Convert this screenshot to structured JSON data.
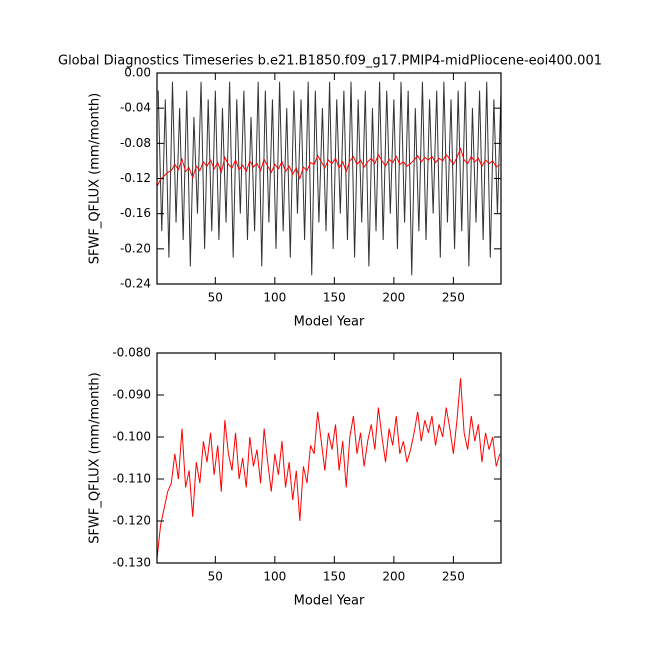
{
  "chart_data": [
    {
      "type": "line",
      "title": "Global Diagnostics Timeseries b.e21.B1850.f09_g17.PMIP4-midPliocene-eoi400.001",
      "xlabel": "Model Year",
      "ylabel": "SFWF_QFLUX (mm/month)",
      "xlim": [
        1,
        290
      ],
      "xticks": [
        50,
        100,
        150,
        200,
        250
      ],
      "ylim": [
        -0.24,
        0
      ],
      "yticks": [
        -0.24,
        {
          "value": -0.2,
          "label": "-0.20"
        },
        -0.16,
        -0.12,
        -0.08,
        -0.04,
        {
          "value": 0,
          "label": "0.00"
        }
      ],
      "series": [
        {
          "color": "#333333",
          "x": [
            2,
            5,
            8,
            11,
            14,
            17,
            20,
            23,
            26,
            29,
            32,
            35,
            38,
            41,
            44,
            47,
            50,
            53,
            56,
            59,
            62,
            65,
            68,
            71,
            74,
            77,
            80,
            83,
            86,
            89,
            92,
            95,
            98,
            101,
            104,
            107,
            110,
            113,
            116,
            119,
            122,
            125,
            128,
            131,
            134,
            137,
            140,
            143,
            146,
            149,
            152,
            155,
            158,
            161,
            164,
            167,
            170,
            173,
            176,
            179,
            182,
            185,
            188,
            191,
            194,
            197,
            200,
            203,
            206,
            209,
            212,
            215,
            218,
            221,
            224,
            227,
            230,
            233,
            236,
            239,
            242,
            245,
            248,
            251,
            254,
            257,
            260,
            263,
            266,
            269,
            272,
            275,
            278,
            281,
            284,
            287,
            290
          ],
          "values": [
            -0.02,
            -0.18,
            -0.03,
            -0.21,
            -0.01,
            -0.17,
            -0.04,
            -0.19,
            -0.02,
            -0.22,
            -0.05,
            -0.16,
            -0.01,
            -0.2,
            -0.03,
            -0.18,
            -0.02,
            -0.19,
            -0.04,
            -0.17,
            -0.01,
            -0.21,
            -0.03,
            -0.16,
            -0.02,
            -0.19,
            -0.05,
            -0.18,
            -0.01,
            -0.22,
            -0.02,
            -0.17,
            -0.03,
            -0.2,
            -0.01,
            -0.18,
            -0.04,
            -0.21,
            -0.02,
            -0.16,
            -0.03,
            -0.19,
            -0.01,
            -0.23,
            -0.02,
            -0.17,
            -0.04,
            -0.18,
            -0.01,
            -0.2,
            -0.03,
            -0.16,
            -0.02,
            -0.19,
            -0.01,
            -0.21,
            -0.03,
            -0.17,
            -0.02,
            -0.22,
            -0.04,
            -0.18,
            -0.01,
            -0.19,
            -0.02,
            -0.16,
            -0.03,
            -0.2,
            -0.01,
            -0.17,
            -0.02,
            -0.23,
            -0.04,
            -0.18,
            -0.01,
            -0.19,
            -0.03,
            -0.16,
            -0.02,
            -0.21,
            -0.01,
            -0.17,
            -0.03,
            -0.2,
            -0.02,
            -0.18,
            -0.01,
            -0.22,
            -0.04,
            -0.17,
            -0.02,
            -0.19,
            -0.01,
            -0.21,
            -0.03,
            -0.16,
            -0.02
          ]
        },
        {
          "color": "#ff0000",
          "x": [
            1,
            4,
            7,
            10,
            13,
            16,
            19,
            22,
            25,
            28,
            31,
            34,
            37,
            40,
            43,
            46,
            49,
            52,
            55,
            58,
            61,
            64,
            67,
            70,
            73,
            76,
            79,
            82,
            85,
            88,
            91,
            94,
            97,
            100,
            103,
            106,
            109,
            112,
            115,
            118,
            121,
            124,
            127,
            130,
            133,
            136,
            139,
            142,
            145,
            148,
            151,
            154,
            157,
            160,
            163,
            166,
            169,
            172,
            175,
            178,
            181,
            184,
            187,
            190,
            193,
            196,
            199,
            202,
            205,
            208,
            211,
            214,
            217,
            220,
            223,
            226,
            229,
            232,
            235,
            238,
            241,
            244,
            247,
            250,
            253,
            256,
            259,
            262,
            265,
            268,
            271,
            274,
            277,
            280,
            283,
            286,
            289
          ],
          "values": [
            -0.129,
            -0.121,
            -0.117,
            -0.113,
            -0.111,
            -0.104,
            -0.11,
            -0.098,
            -0.112,
            -0.108,
            -0.119,
            -0.106,
            -0.111,
            -0.101,
            -0.106,
            -0.099,
            -0.109,
            -0.102,
            -0.113,
            -0.096,
            -0.104,
            -0.108,
            -0.099,
            -0.11,
            -0.105,
            -0.112,
            -0.1,
            -0.107,
            -0.103,
            -0.111,
            -0.098,
            -0.106,
            -0.113,
            -0.104,
            -0.109,
            -0.101,
            -0.112,
            -0.106,
            -0.115,
            -0.108,
            -0.12,
            -0.107,
            -0.111,
            -0.102,
            -0.104,
            -0.094,
            -0.101,
            -0.108,
            -0.099,
            -0.103,
            -0.097,
            -0.108,
            -0.101,
            -0.112,
            -0.1,
            -0.095,
            -0.104,
            -0.099,
            -0.107,
            -0.101,
            -0.097,
            -0.103,
            -0.093,
            -0.1,
            -0.106,
            -0.098,
            -0.102,
            -0.095,
            -0.104,
            -0.101,
            -0.106,
            -0.103,
            -0.099,
            -0.094,
            -0.101,
            -0.096,
            -0.099,
            -0.095,
            -0.102,
            -0.097,
            -0.1,
            -0.093,
            -0.098,
            -0.104,
            -0.096,
            -0.086,
            -0.099,
            -0.103,
            -0.095,
            -0.101,
            -0.097,
            -0.106,
            -0.099,
            -0.103,
            -0.1,
            -0.107,
            -0.104
          ]
        }
      ]
    },
    {
      "type": "line",
      "xlabel": "Model Year",
      "ylabel": "SFWF_QFLUX (mm/month)",
      "xlim": [
        1,
        290
      ],
      "xticks": [
        50,
        100,
        150,
        200,
        250
      ],
      "ylim": [
        -0.13,
        -0.08
      ],
      "yticks": [
        {
          "value": -0.13,
          "label": "-0.130"
        },
        {
          "value": -0.12,
          "label": "-0.120"
        },
        {
          "value": -0.11,
          "label": "-0.110"
        },
        {
          "value": -0.1,
          "label": "-0.100"
        },
        {
          "value": -0.09,
          "label": "-0.090"
        },
        {
          "value": -0.08,
          "label": "-0.080"
        }
      ],
      "series": [
        {
          "color": "#ff0000",
          "x": [
            1,
            4,
            7,
            10,
            13,
            16,
            19,
            22,
            25,
            28,
            31,
            34,
            37,
            40,
            43,
            46,
            49,
            52,
            55,
            58,
            61,
            64,
            67,
            70,
            73,
            76,
            79,
            82,
            85,
            88,
            91,
            94,
            97,
            100,
            103,
            106,
            109,
            112,
            115,
            118,
            121,
            124,
            127,
            130,
            133,
            136,
            139,
            142,
            145,
            148,
            151,
            154,
            157,
            160,
            163,
            166,
            169,
            172,
            175,
            178,
            181,
            184,
            187,
            190,
            193,
            196,
            199,
            202,
            205,
            208,
            211,
            214,
            217,
            220,
            223,
            226,
            229,
            232,
            235,
            238,
            241,
            244,
            247,
            250,
            253,
            256,
            259,
            262,
            265,
            268,
            271,
            274,
            277,
            280,
            283,
            286,
            289
          ],
          "values": [
            -0.129,
            -0.121,
            -0.117,
            -0.113,
            -0.111,
            -0.104,
            -0.11,
            -0.098,
            -0.112,
            -0.108,
            -0.119,
            -0.106,
            -0.111,
            -0.101,
            -0.106,
            -0.099,
            -0.109,
            -0.102,
            -0.113,
            -0.096,
            -0.104,
            -0.108,
            -0.099,
            -0.11,
            -0.105,
            -0.112,
            -0.1,
            -0.107,
            -0.103,
            -0.111,
            -0.098,
            -0.106,
            -0.113,
            -0.104,
            -0.109,
            -0.101,
            -0.112,
            -0.106,
            -0.115,
            -0.108,
            -0.12,
            -0.107,
            -0.111,
            -0.102,
            -0.104,
            -0.094,
            -0.101,
            -0.108,
            -0.099,
            -0.103,
            -0.097,
            -0.108,
            -0.101,
            -0.112,
            -0.1,
            -0.095,
            -0.104,
            -0.099,
            -0.107,
            -0.101,
            -0.097,
            -0.103,
            -0.093,
            -0.1,
            -0.106,
            -0.098,
            -0.102,
            -0.095,
            -0.104,
            -0.101,
            -0.106,
            -0.103,
            -0.099,
            -0.094,
            -0.101,
            -0.096,
            -0.099,
            -0.095,
            -0.102,
            -0.097,
            -0.1,
            -0.093,
            -0.098,
            -0.104,
            -0.096,
            -0.086,
            -0.099,
            -0.103,
            -0.095,
            -0.101,
            -0.097,
            -0.106,
            -0.099,
            -0.103,
            -0.1,
            -0.107,
            -0.104
          ]
        }
      ]
    }
  ]
}
